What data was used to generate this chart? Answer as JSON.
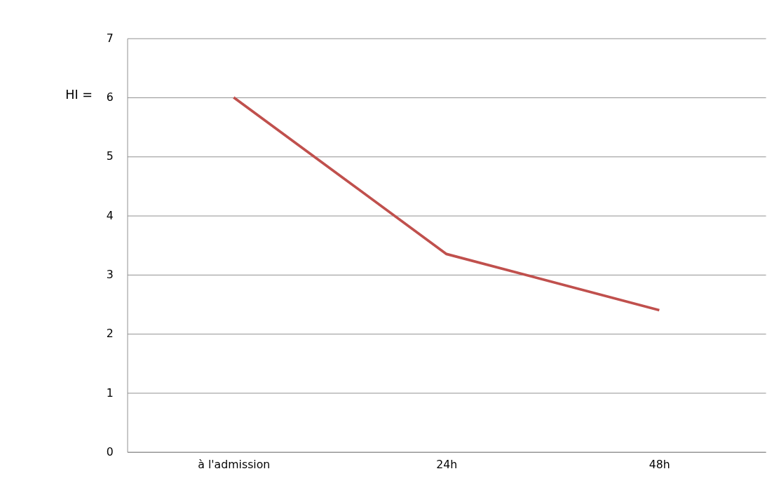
{
  "chart_data": {
    "type": "line",
    "ylabel": "HI =",
    "categories": [
      "à l'admission",
      "24h",
      "48h"
    ],
    "series": [
      {
        "color": "#c0504d",
        "values": [
          6,
          3.35,
          2.4
        ]
      }
    ],
    "ylim": [
      0,
      7
    ],
    "yticks": [
      0,
      1,
      2,
      3,
      4,
      5,
      6,
      7
    ],
    "grid": "y",
    "marker": "none",
    "line_style": "solid"
  }
}
